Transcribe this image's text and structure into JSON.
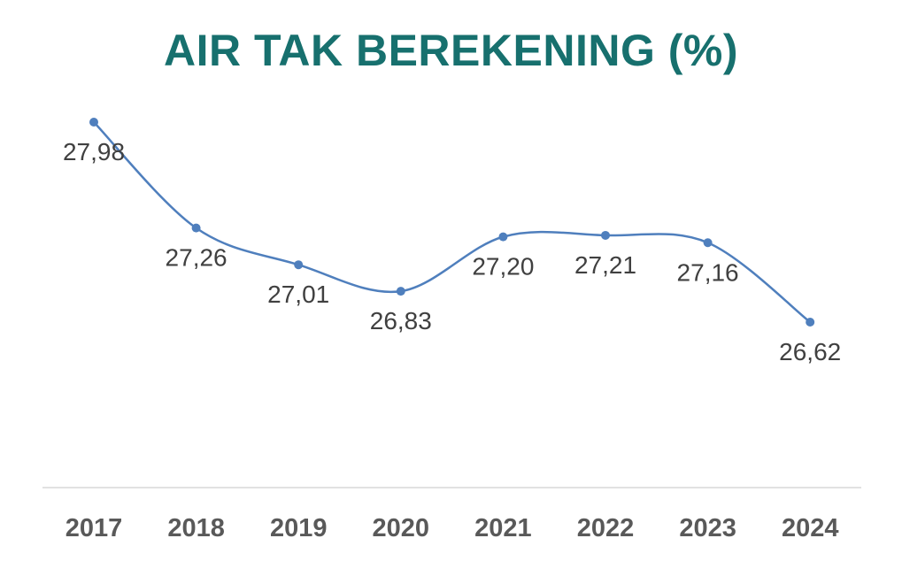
{
  "chart_data": {
    "type": "line",
    "title": "AIR TAK BEREKENING (%)",
    "categories": [
      "2017",
      "2018",
      "2019",
      "2020",
      "2021",
      "2022",
      "2023",
      "2024"
    ],
    "values": [
      27.98,
      27.26,
      27.01,
      26.83,
      27.2,
      27.21,
      27.16,
      26.62
    ],
    "data_labels": [
      "27,98",
      "27,26",
      "27,01",
      "26,83",
      "27,20",
      "27,21",
      "27,16",
      "26,62"
    ],
    "smooth": true,
    "grid": false,
    "legend": "none",
    "colors": {
      "line": "#4f7fbd",
      "title": "#17706e",
      "axis": "#d9d9d9"
    }
  }
}
